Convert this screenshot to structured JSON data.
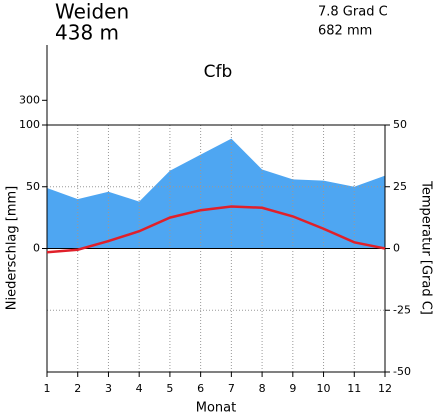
{
  "chart_data": {
    "type": "climate",
    "title": "Weiden",
    "subtitle": "438 m",
    "annotations": [
      "7.8 Grad C",
      "682 mm",
      "Cfb"
    ],
    "xlabel": "Monat",
    "ylabel": "Niederschlag [mm]",
    "y2label": "Temperatur [Grad C]",
    "x": [
      1,
      2,
      3,
      4,
      5,
      6,
      7,
      8,
      9,
      10,
      11,
      12
    ],
    "xlim": [
      1,
      12
    ],
    "xticks": [
      1,
      2,
      3,
      4,
      5,
      6,
      7,
      8,
      9,
      10,
      11,
      12
    ],
    "ylim": [
      -100,
      650
    ],
    "yticks": [
      0,
      50,
      100,
      300
    ],
    "scale_break": 100,
    "y2lim": [
      -50,
      50
    ],
    "y2ticks": [
      -50,
      -25,
      0,
      25,
      50
    ],
    "grid": true,
    "series": [
      {
        "name": "Niederschlag",
        "color": "#4ea6f2",
        "axis": "y",
        "values": [
          49,
          40,
          46,
          38,
          63,
          76,
          89,
          64,
          56,
          55,
          50,
          59
        ]
      },
      {
        "name": "Temperatur",
        "color": "#e0202a",
        "axis": "y2",
        "values": [
          -1.5,
          -0.5,
          3,
          7,
          12.5,
          15.5,
          17,
          16.5,
          13,
          8,
          2.5,
          0
        ]
      }
    ]
  }
}
